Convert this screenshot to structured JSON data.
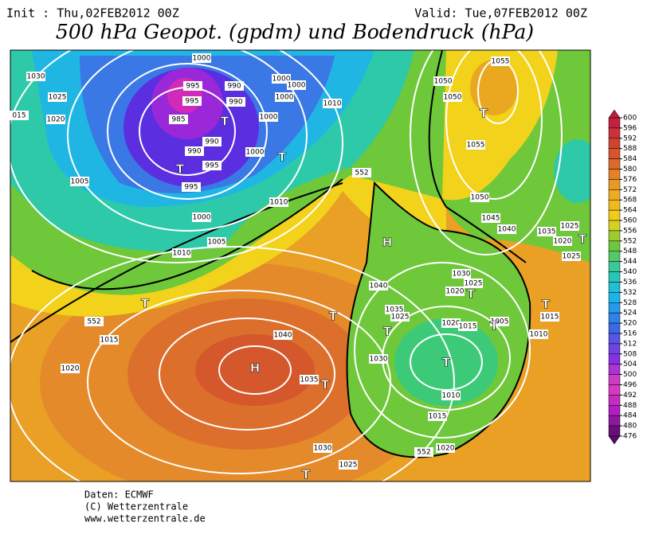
{
  "header": {
    "init": "Init : Thu,02FEB2012 00Z",
    "valid": "Valid: Tue,07FEB2012 00Z",
    "title": "500 hPa Geopot. (gpdm) und Bodendruck (hPa)"
  },
  "map": {
    "isobar_labels": [
      "1030",
      "1025",
      "1020",
      "015",
      "1005",
      "1000",
      "1005",
      "1010",
      "995",
      "995",
      "990",
      "995",
      "985",
      "990",
      "990",
      "990",
      "995",
      "1000",
      "1000",
      "1000",
      "1000",
      "1000",
      "1000",
      "1010",
      "1010",
      "1050",
      "1050",
      "1055",
      "1055",
      "1050",
      "1045",
      "1040",
      "1035",
      "1025",
      "1020",
      "1025",
      "1040",
      "1030",
      "1025",
      "1020",
      "1035",
      "1025",
      "1020",
      "1015",
      "1005",
      "1015",
      "1010",
      "1030",
      "1010",
      "1015",
      "1020",
      "1040",
      "1035",
      "1015",
      "1020",
      "1030",
      "1025",
      "552",
      "552",
      "552"
    ],
    "centers": [
      "H",
      "H",
      "T",
      "T",
      "T",
      "T",
      "T",
      "T",
      "T",
      "T",
      "T",
      "T",
      "T",
      "T",
      "T",
      "T"
    ]
  },
  "colorbar": {
    "ticks": [
      600,
      596,
      592,
      588,
      584,
      580,
      576,
      572,
      568,
      564,
      560,
      556,
      552,
      548,
      544,
      540,
      536,
      532,
      528,
      524,
      520,
      516,
      512,
      508,
      504,
      500,
      496,
      492,
      488,
      484,
      480,
      476
    ]
  },
  "footer": {
    "lines": [
      "Daten: ECMWF",
      "(C) Wetterzentrale",
      "www.wetterzentrale.de"
    ]
  }
}
